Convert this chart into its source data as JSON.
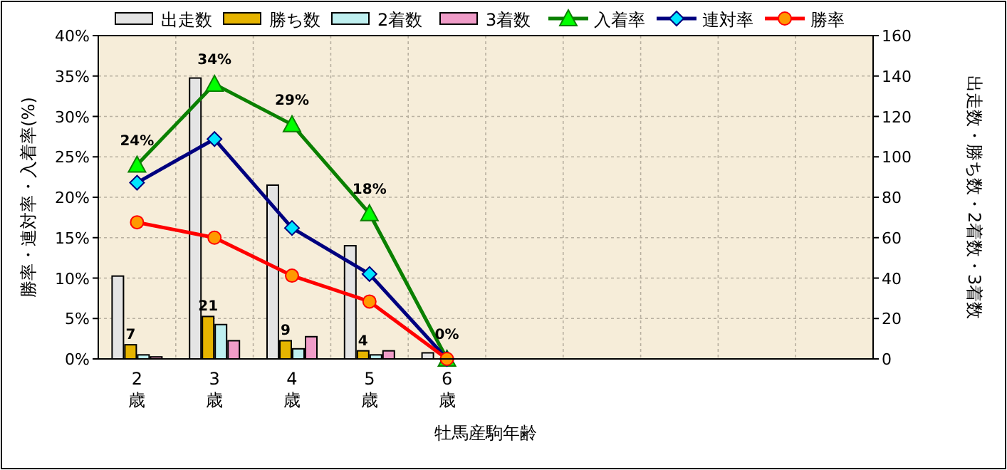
{
  "chart_data": {
    "type": "bar",
    "xlabel": "牡馬産駒年齢",
    "ylabel": "勝率・連対率・入着率(%)",
    "y2label": "出走数・勝ち数・2着数・3着数",
    "categories": [
      "2歳",
      "3歳",
      "4歳",
      "5歳",
      "6歳",
      null,
      null,
      null,
      null,
      null
    ],
    "series": [
      {
        "name": "出走数",
        "axis": "y2",
        "color": "#e4e4e4",
        "values": [
          41,
          139,
          86,
          56,
          3,
          null,
          null,
          null,
          null,
          null
        ]
      },
      {
        "name": "勝ち数",
        "axis": "y2",
        "color": "#e6b400",
        "values": [
          7,
          21,
          9,
          4,
          0,
          null,
          null,
          null,
          null,
          null
        ],
        "value_labels": [
          "7",
          "21",
          "9",
          "4",
          null,
          null,
          null,
          null,
          null,
          null
        ]
      },
      {
        "name": "2着数",
        "axis": "y2",
        "color": "#bff0f0",
        "values": [
          2,
          17,
          5,
          2,
          0,
          null,
          null,
          null,
          null,
          null
        ]
      },
      {
        "name": "3着数",
        "axis": "y2",
        "color": "#f09cc8",
        "values": [
          1,
          9,
          11,
          4,
          0,
          null,
          null,
          null,
          null,
          null
        ]
      },
      {
        "name": "入着率",
        "type": "line",
        "marker": "triangle",
        "color": "#0a8000",
        "values": [
          24,
          34,
          29,
          18,
          0,
          null,
          null,
          null,
          null,
          null
        ],
        "value_labels": [
          "24%",
          "34%",
          "29%",
          "18%",
          "0%",
          null,
          null,
          null,
          null,
          null
        ]
      },
      {
        "name": "連対率",
        "type": "line",
        "marker": "diamond",
        "color": "#00007f",
        "values": [
          21.8,
          27.2,
          16.2,
          10.5,
          0,
          null,
          null,
          null,
          null,
          null
        ]
      },
      {
        "name": "勝率",
        "type": "line",
        "marker": "circle",
        "color": "#ff0000",
        "values": [
          16.9,
          15.0,
          10.3,
          7.1,
          0,
          null,
          null,
          null,
          null,
          null
        ]
      }
    ],
    "ylim": [
      0,
      40
    ],
    "yticks": [
      {
        "value": 0,
        "label": "0%"
      },
      {
        "value": 5,
        "label": "5%"
      },
      {
        "value": 10,
        "label": "10%"
      },
      {
        "value": 15,
        "label": "15%"
      },
      {
        "value": 20,
        "label": "20%"
      },
      {
        "value": 25,
        "label": "25%"
      },
      {
        "value": 30,
        "label": "30%"
      },
      {
        "value": 35,
        "label": "35%"
      },
      {
        "value": 40,
        "label": "40%"
      }
    ],
    "y2lim": [
      0,
      160
    ],
    "y2ticks": [
      0,
      20,
      40,
      60,
      80,
      100,
      120,
      140,
      160
    ],
    "grid": true,
    "legend": "top"
  }
}
